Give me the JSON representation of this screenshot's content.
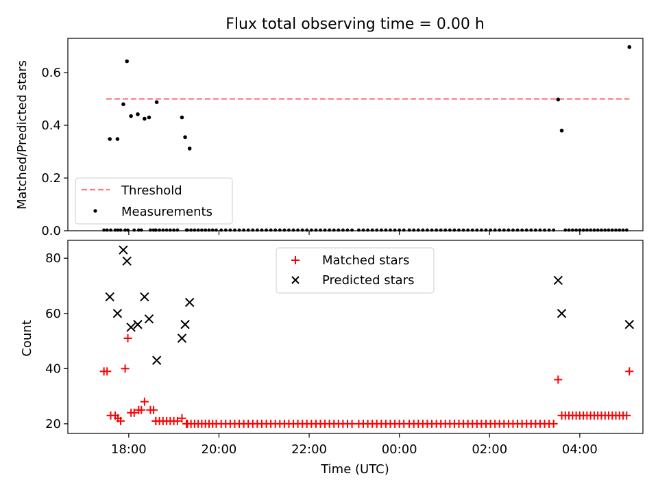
{
  "chart_data": [
    {
      "type": "scatter",
      "title": "Flux total observing time = 0.00 h",
      "xlabel": "",
      "ylabel": "Matched/Predicted stars",
      "ylim": [
        0,
        0.73
      ],
      "yticks": [
        0.0,
        0.2,
        0.4,
        0.6
      ],
      "ytick_labels": [
        "0.0",
        "0.2",
        "0.4",
        "0.6"
      ],
      "xlim_hours": [
        16.65,
        29.4
      ],
      "legend": {
        "placement": "lower-left",
        "entries": [
          "Threshold",
          "Measurements"
        ]
      },
      "series": [
        {
          "name": "Threshold",
          "style": "dashed-line",
          "color": "#ff7777",
          "x": [
            17.5,
            29.1
          ],
          "y": [
            0.5,
            0.5
          ]
        },
        {
          "name": "Measurements",
          "style": "dot",
          "color": "#000000",
          "x": [
            17.58,
            17.75,
            17.88,
            17.96,
            18.05,
            18.2,
            18.35,
            18.45,
            18.62,
            19.18,
            19.25,
            19.35,
            27.52,
            27.6,
            29.1
          ],
          "y": [
            0.348,
            0.348,
            0.48,
            0.643,
            0.435,
            0.442,
            0.425,
            0.43,
            0.488,
            0.43,
            0.355,
            0.312,
            0.498,
            0.38,
            0.697
          ]
        }
      ]
    },
    {
      "type": "scatter",
      "title": "",
      "xlabel": "Time (UTC)",
      "ylabel": "Count",
      "ylim": [
        16.5,
        86.5
      ],
      "yticks": [
        20,
        40,
        60,
        80
      ],
      "ytick_labels": [
        "20",
        "40",
        "60",
        "80"
      ],
      "xlim_hours": [
        16.65,
        29.4
      ],
      "xticks_hours": [
        18,
        20,
        22,
        24,
        26,
        28
      ],
      "xtick_labels": [
        "18:00",
        "20:00",
        "22:00",
        "00:00",
        "02:00",
        "04:00"
      ],
      "legend": {
        "placement": "upper-center",
        "entries": [
          "Matched stars",
          "Predicted stars"
        ]
      },
      "series": [
        {
          "name": "Matched stars",
          "style": "plus",
          "color": "#ff0000",
          "points": [
            [
              17.45,
              39
            ],
            [
              17.52,
              39
            ],
            [
              17.6,
              23
            ],
            [
              17.7,
              23
            ],
            [
              17.76,
              22
            ],
            [
              17.82,
              21
            ],
            [
              17.92,
              40
            ],
            [
              17.98,
              51
            ],
            [
              18.05,
              24
            ],
            [
              18.12,
              24
            ],
            [
              18.22,
              25
            ],
            [
              18.28,
              25
            ],
            [
              18.35,
              28
            ],
            [
              18.48,
              25
            ],
            [
              18.55,
              25
            ],
            [
              18.6,
              21
            ],
            [
              19.18,
              22
            ],
            [
              19.28,
              20
            ],
            [
              27.52,
              36
            ],
            [
              29.1,
              39
            ]
          ],
          "baseline_runs": [
            {
              "from": 18.6,
              "to": 19.15,
              "step": 0.08,
              "value": 21
            },
            {
              "from": 19.3,
              "to": 20.0,
              "step": 0.08,
              "value": 20
            },
            {
              "from": 20.05,
              "to": 22.95,
              "step": 0.1,
              "value": 20
            },
            {
              "from": 23.1,
              "to": 24.1,
              "step": 0.1,
              "value": 20
            },
            {
              "from": 24.22,
              "to": 27.5,
              "step": 0.1,
              "value": 20
            },
            {
              "from": 27.6,
              "to": 29.05,
              "step": 0.08,
              "value": 23
            }
          ]
        },
        {
          "name": "Predicted stars",
          "style": "cross",
          "color": "#000000",
          "x": [
            17.58,
            17.75,
            17.88,
            17.96,
            18.05,
            18.2,
            18.35,
            18.45,
            18.62,
            19.18,
            19.25,
            19.35,
            27.52,
            27.6,
            29.1
          ],
          "y": [
            66,
            60,
            83,
            79,
            55,
            56,
            66,
            58,
            43,
            51,
            56,
            64,
            72,
            60,
            56
          ]
        }
      ]
    }
  ]
}
